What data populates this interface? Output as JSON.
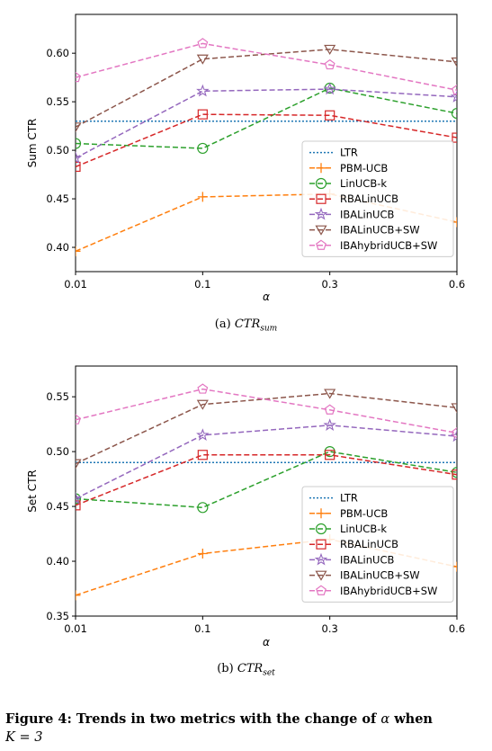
{
  "chart_data": [
    {
      "type": "line",
      "ylabel": "Sum CTR",
      "xlabel": "α",
      "categories": [
        "0.01",
        "0.1",
        "0.3",
        "0.6"
      ],
      "ylim": [
        0.375,
        0.64
      ],
      "yticks": [
        0.4,
        0.45,
        0.5,
        0.55,
        0.6
      ],
      "legend_position": "lower-right",
      "caption_prefix": "(a)",
      "caption_math": "CTR",
      "caption_sub": "sum",
      "series": [
        {
          "name": "LTR",
          "values": [
            0.53,
            0.53,
            0.53,
            0.53
          ],
          "color": "#1f77b4",
          "style": "dotted",
          "marker": "none"
        },
        {
          "name": "PBM-UCB",
          "values": [
            0.396,
            0.452,
            0.455,
            0.426
          ],
          "color": "#ff7f0e",
          "style": "dashed",
          "marker": "plus"
        },
        {
          "name": "LinUCB-k",
          "values": [
            0.507,
            0.502,
            0.564,
            0.538
          ],
          "color": "#2ca02c",
          "style": "dashed",
          "marker": "circle"
        },
        {
          "name": "RBALinUCB",
          "values": [
            0.483,
            0.537,
            0.536,
            0.513
          ],
          "color": "#d62728",
          "style": "dashed",
          "marker": "square"
        },
        {
          "name": "IBALinUCB",
          "values": [
            0.492,
            0.561,
            0.563,
            0.555
          ],
          "color": "#9467bd",
          "style": "dashed",
          "marker": "star"
        },
        {
          "name": "IBALinUCB+SW",
          "values": [
            0.524,
            0.594,
            0.604,
            0.591
          ],
          "color": "#8c564b",
          "style": "dashed",
          "marker": "triangle-down"
        },
        {
          "name": "IBAhybridUCB+SW",
          "values": [
            0.575,
            0.61,
            0.588,
            0.562
          ],
          "color": "#e377c2",
          "style": "dashed",
          "marker": "pentagon"
        }
      ]
    },
    {
      "type": "line",
      "ylabel": "Set CTR",
      "xlabel": "α",
      "categories": [
        "0.01",
        "0.1",
        "0.3",
        "0.6"
      ],
      "ylim": [
        0.35,
        0.578
      ],
      "yticks": [
        0.35,
        0.4,
        0.45,
        0.5,
        0.55
      ],
      "legend_position": "lower-right",
      "caption_prefix": "(b)",
      "caption_math": "CTR",
      "caption_sub": "set",
      "series": [
        {
          "name": "LTR",
          "values": [
            0.49,
            0.49,
            0.49,
            0.49
          ],
          "color": "#1f77b4",
          "style": "dotted",
          "marker": "none"
        },
        {
          "name": "PBM-UCB",
          "values": [
            0.369,
            0.407,
            0.42,
            0.395
          ],
          "color": "#ff7f0e",
          "style": "dashed",
          "marker": "plus"
        },
        {
          "name": "LinUCB-k",
          "values": [
            0.457,
            0.449,
            0.5,
            0.481
          ],
          "color": "#2ca02c",
          "style": "dashed",
          "marker": "circle"
        },
        {
          "name": "RBALinUCB",
          "values": [
            0.451,
            0.497,
            0.497,
            0.479
          ],
          "color": "#d62728",
          "style": "dashed",
          "marker": "square"
        },
        {
          "name": "IBALinUCB",
          "values": [
            0.457,
            0.515,
            0.524,
            0.514
          ],
          "color": "#9467bd",
          "style": "dashed",
          "marker": "star"
        },
        {
          "name": "IBALinUCB+SW",
          "values": [
            0.489,
            0.543,
            0.553,
            0.54
          ],
          "color": "#8c564b",
          "style": "dashed",
          "marker": "triangle-down"
        },
        {
          "name": "IBAhybridUCB+SW",
          "values": [
            0.529,
            0.557,
            0.538,
            0.517
          ],
          "color": "#e377c2",
          "style": "dashed",
          "marker": "pentagon"
        }
      ]
    }
  ],
  "figure_caption": {
    "label": "Figure 4: Trends in two metrics with the change of",
    "symbol": "α",
    "suffix": "when",
    "line2": "K = 3"
  }
}
